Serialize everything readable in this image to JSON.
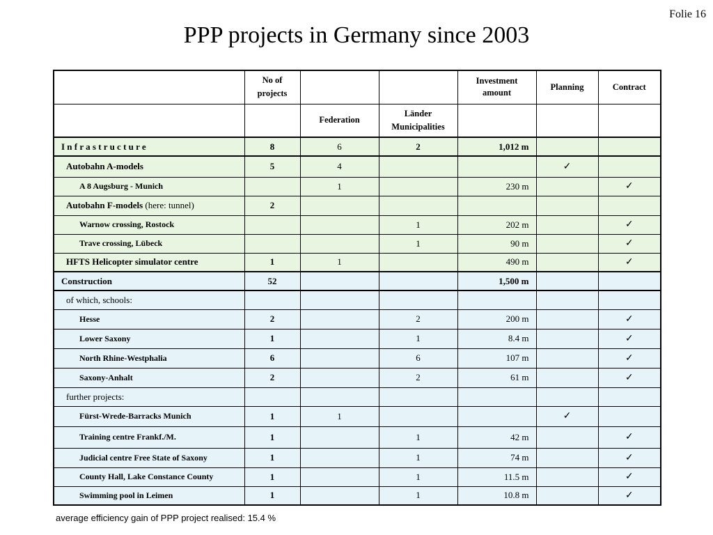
{
  "slide_number": "Folie 16",
  "title": "PPP projects in Germany since 2003",
  "table": {
    "header1": {
      "no_of_projects": "No of projects",
      "investment": "Investment amount",
      "planning": "Planning",
      "contract": "Contract"
    },
    "header2": {
      "federation": "Federation",
      "laender": "Länder Municipalities"
    },
    "rows": [
      {
        "label": "I n f r a s t r u c t u r e",
        "num": "8",
        "fed": "6",
        "land": "2",
        "inv": "1,012 m",
        "plan": "",
        "contr": ""
      },
      {
        "label": "Autobahn  A-models",
        "num": "5",
        "fed": "4",
        "land": "",
        "inv": "",
        "plan": "✓",
        "contr": ""
      },
      {
        "label": "A 8  Augsburg - Munich",
        "num": "",
        "fed": "1",
        "land": "",
        "inv": "230 m",
        "plan": "",
        "contr": "✓"
      },
      {
        "label": "Autobahn F-models",
        "label_note": " (here: tunnel)",
        "num": "2",
        "fed": "",
        "land": "",
        "inv": "",
        "plan": "",
        "contr": ""
      },
      {
        "label": "Warnow crossing, Rostock",
        "num": "",
        "fed": "",
        "land": "1",
        "inv": "202 m",
        "plan": "",
        "contr": "✓"
      },
      {
        "label": "Trave crossing, Lübeck",
        "num": "",
        "fed": "",
        "land": "1",
        "inv": "90 m",
        "plan": "",
        "contr": "✓"
      },
      {
        "label": "HFTS Helicopter simulator centre",
        "num": "1",
        "fed": "1",
        "land": "",
        "inv": "490 m",
        "plan": "",
        "contr": "✓"
      },
      {
        "label": "Construction",
        "num": "52",
        "fed": "",
        "land": "",
        "inv": "1,500 m",
        "plan": "",
        "contr": ""
      },
      {
        "label": "of which, schools:",
        "num": "",
        "fed": "",
        "land": "",
        "inv": "",
        "plan": "",
        "contr": ""
      },
      {
        "label": "Hesse",
        "num": "2",
        "fed": "",
        "land": "2",
        "inv": "200 m",
        "plan": "",
        "contr": "✓"
      },
      {
        "label": "Lower Saxony",
        "num": "1",
        "fed": "",
        "land": "1",
        "inv": "8.4 m",
        "plan": "",
        "contr": "✓"
      },
      {
        "label": "North Rhine-Westphalia",
        "num": "6",
        "fed": "",
        "land": "6",
        "inv": "107 m",
        "plan": "",
        "contr": "✓"
      },
      {
        "label": "Saxony-Anhalt",
        "num": "2",
        "fed": "",
        "land": "2",
        "inv": "61 m",
        "plan": "",
        "contr": "✓"
      },
      {
        "label": "further projects:",
        "num": "",
        "fed": "",
        "land": "",
        "inv": "",
        "plan": "",
        "contr": ""
      },
      {
        "label": "Fürst-Wrede-Barracks Munich",
        "num": "1",
        "fed": "1",
        "land": "",
        "inv": "",
        "plan": "✓",
        "contr": ""
      },
      {
        "label": "Training centre Frankf./M.",
        "num": "1",
        "fed": "",
        "land": "1",
        "inv": "42 m",
        "plan": "",
        "contr": "✓"
      },
      {
        "label": "Judicial centre Free State of Saxony",
        "num": "1",
        "fed": "",
        "land": "1",
        "inv": "74 m",
        "plan": "",
        "contr": "✓"
      },
      {
        "label": "County Hall, Lake Constance County",
        "num": "1",
        "fed": "",
        "land": "1",
        "inv": "11.5 m",
        "plan": "",
        "contr": "✓"
      },
      {
        "label": "Swimming pool in Leimen",
        "num": "1",
        "fed": "",
        "land": "1",
        "inv": "10.8 m",
        "plan": "",
        "contr": "✓"
      }
    ]
  },
  "footnote": "average efficiency gain of PPP project realised:  15.4 %"
}
